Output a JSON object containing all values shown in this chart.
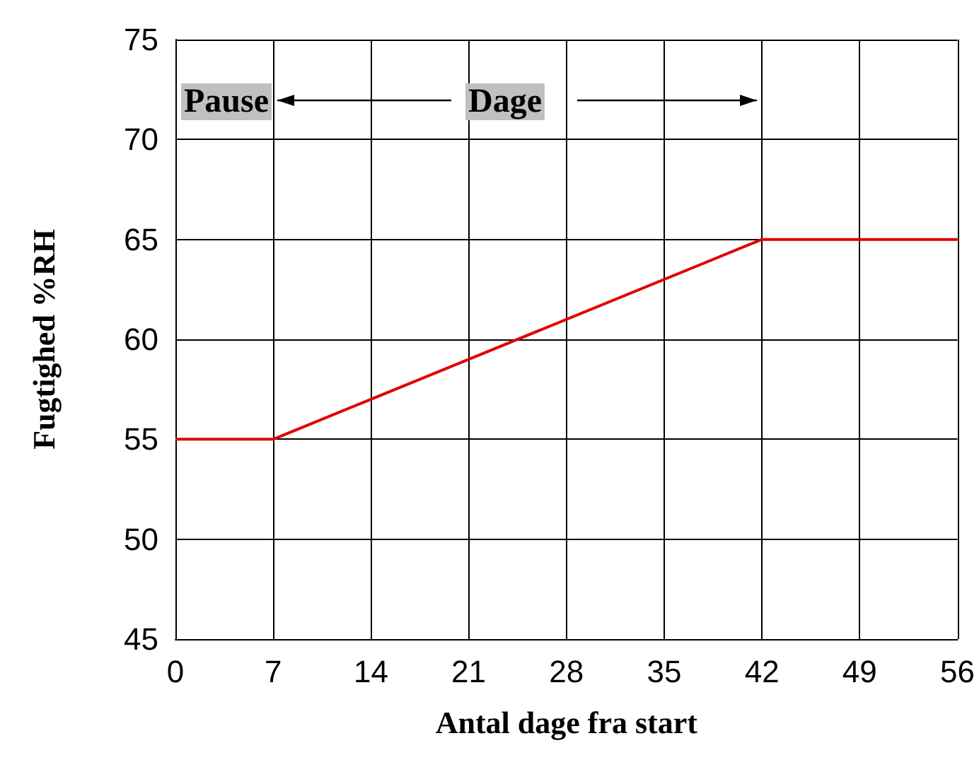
{
  "chart_data": {
    "type": "line",
    "xlabel": "Antal dage fra start",
    "ylabel": "Fugtighed %RH",
    "x": [
      0,
      7,
      42,
      56
    ],
    "series": [
      {
        "color": "#e00000",
        "values": [
          55,
          55,
          65,
          65
        ]
      }
    ],
    "xlim": [
      0,
      56
    ],
    "xticks": [
      0,
      7,
      14,
      21,
      28,
      35,
      42,
      49,
      56
    ],
    "ylim": [
      45,
      75
    ],
    "yticks": [
      45,
      50,
      55,
      60,
      65,
      70,
      75
    ],
    "grid": true,
    "marker": "none",
    "line_style": "solid",
    "annotations": [
      "Pause",
      "Dage"
    ]
  }
}
